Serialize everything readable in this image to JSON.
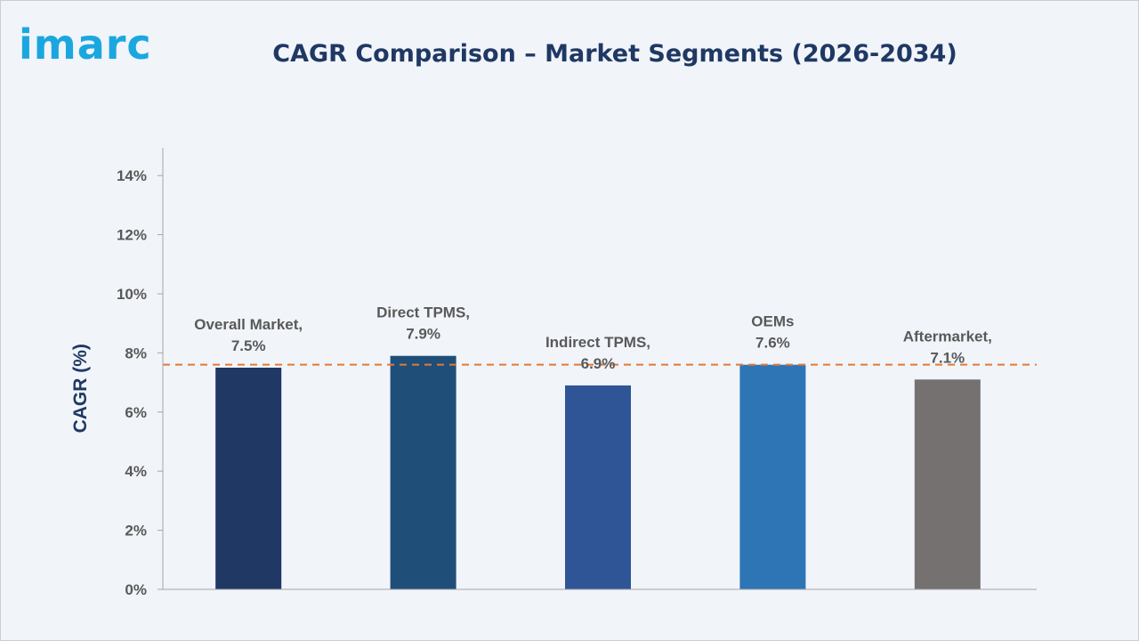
{
  "brand": {
    "logo_text": "imarc",
    "logo_color": "#1aa7e0"
  },
  "chart_data": {
    "type": "bar",
    "title": "CAGR Comparison – Market Segments (2026-2034)",
    "title_color": "#1f3864",
    "ylabel": "CAGR (%)",
    "ylim": [
      0,
      15
    ],
    "yticks": [
      0,
      2,
      4,
      6,
      8,
      10,
      12,
      14
    ],
    "ytick_labels": [
      "0%",
      "2%",
      "4%",
      "6%",
      "8%",
      "10%",
      "12%",
      "14%"
    ],
    "grid": false,
    "categories": [
      "Overall Market",
      "Direct TPMS",
      "Indirect TPMS",
      "OEMs",
      "Aftermarket"
    ],
    "values": [
      7.5,
      7.9,
      6.9,
      7.6,
      7.1
    ],
    "data_labels": [
      [
        "Overall Market,",
        "7.5%"
      ],
      [
        "Direct TPMS,",
        "7.9%"
      ],
      [
        "Indirect TPMS,",
        "6.9%"
      ],
      [
        "OEMs",
        "7.6%"
      ],
      [
        "Aftermarket,",
        "7.1%"
      ]
    ],
    "colors": [
      "#1f3864",
      "#1f4e79",
      "#2f5597",
      "#2e75b6",
      "#767171"
    ],
    "reference_line": {
      "value": 7.6,
      "style": "dashed",
      "color": "#e07b39"
    }
  }
}
